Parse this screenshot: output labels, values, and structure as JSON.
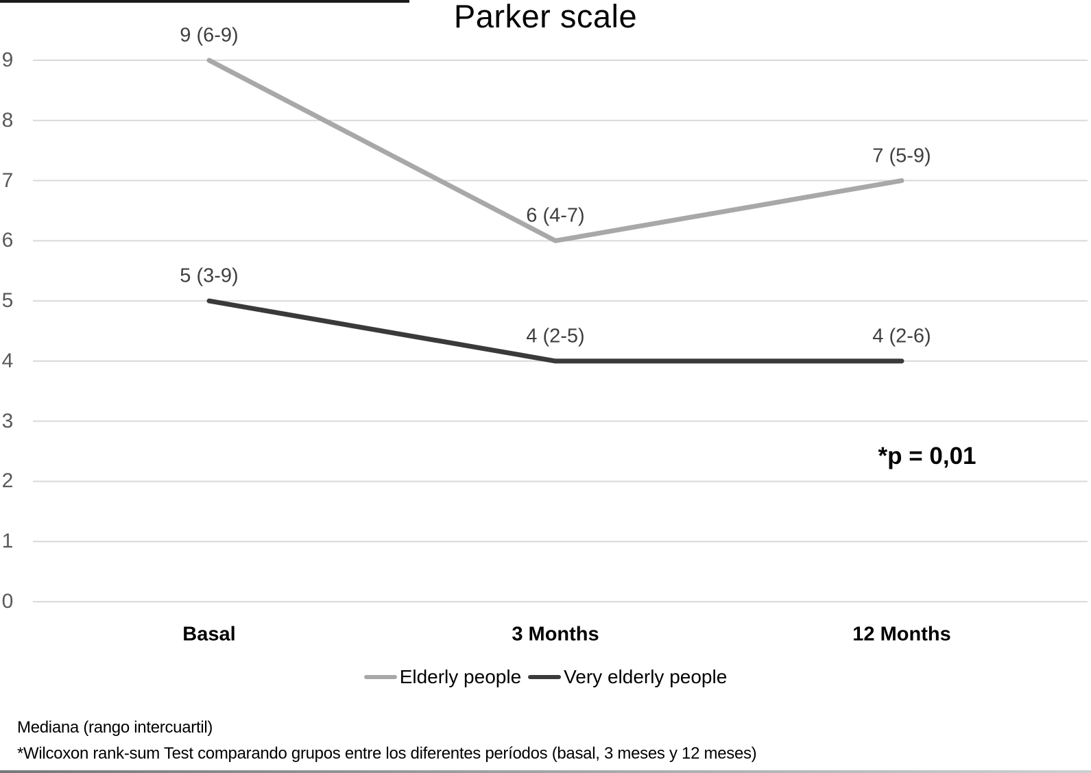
{
  "chart_data": {
    "type": "line",
    "title": "Parker scale",
    "categories": [
      "Basal",
      "3 Months",
      "12 Months"
    ],
    "series": [
      {
        "name": "Elderly people",
        "values": [
          9,
          6,
          7
        ],
        "point_labels": [
          "9 (6-9)",
          "6 (4-7)",
          "7 (5-9)"
        ],
        "color": "#a8a8a8"
      },
      {
        "name": "Very elderly people",
        "values": [
          5,
          4,
          4
        ],
        "point_labels": [
          "5 (3-9)",
          "4 (2-5)",
          "4 (2-6)"
        ],
        "color": "#3a3a3a"
      }
    ],
    "y_ticks": [
      9,
      8,
      7,
      6,
      5,
      4,
      3,
      2,
      1,
      0
    ],
    "ylim": [
      0,
      9
    ],
    "grid": "horizontal",
    "gridline_color": "#d9d9d9",
    "legend_position": "bottom",
    "annotation": "*p = 0,01"
  },
  "footnotes": [
    "Mediana (rango intercuartil)",
    "*Wilcoxon rank-sum Test comparando grupos entre los diferentes períodos (basal, 3 meses y 12 meses)"
  ]
}
